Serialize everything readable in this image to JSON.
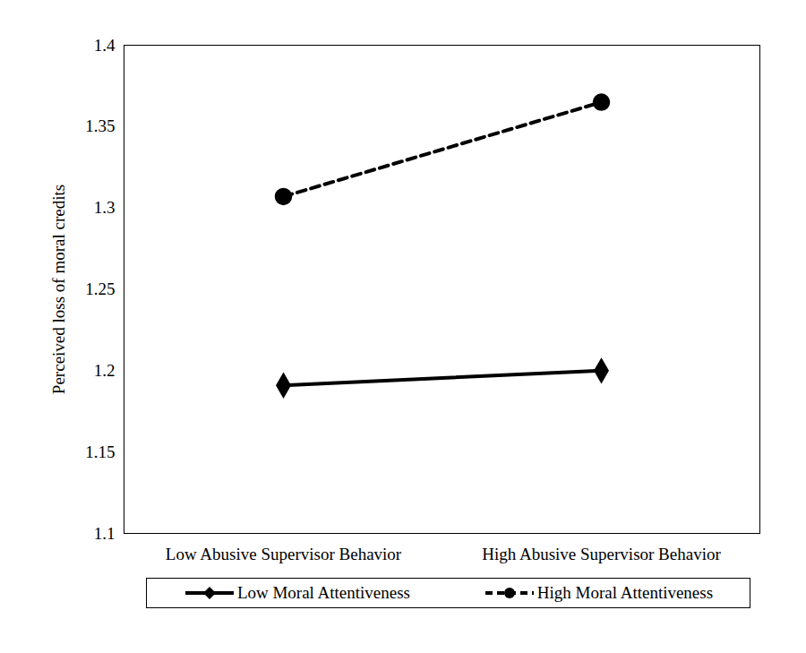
{
  "chart_data": {
    "type": "line",
    "categories": [
      "Low Abusive Supervisor Behavior",
      "High Abusive Supervisor Behavior"
    ],
    "ylabel": "Perceived loss of moral credits",
    "ylim": [
      1.1,
      1.4
    ],
    "yticks": [
      1.1,
      1.15,
      1.2,
      1.25,
      1.3,
      1.35,
      1.4
    ],
    "legend": "bottom",
    "series": [
      {
        "name": "Low Moral Attentiveness",
        "color": "#000000",
        "values": [
          1.191,
          1.2
        ],
        "marker": "diamond",
        "line_style": "solid"
      },
      {
        "name": "High Moral Attentiveness",
        "color": "#000000",
        "values": [
          1.307,
          1.365
        ],
        "marker": "circle",
        "line_style": "dashed"
      }
    ]
  }
}
